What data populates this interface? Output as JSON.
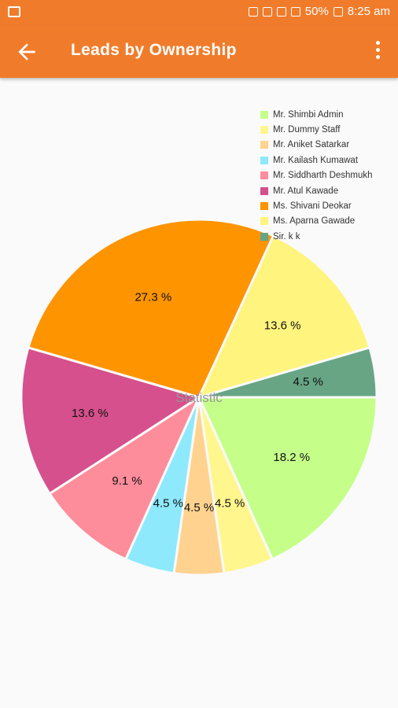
{
  "status_bar": {
    "icons": [
      "image-icon",
      "alarm-icon",
      "mute-icon",
      "volte-icon",
      "wifi-icon",
      "data-icon",
      "signal-icon",
      "battery-icon"
    ],
    "battery": "50%",
    "time": "8:25 am"
  },
  "app_bar": {
    "title": "Leads by Ownership",
    "back_icon": "back-arrow-icon",
    "menu_icon": "more-vert-icon",
    "color": "#f07c2b"
  },
  "chart_data": {
    "type": "pie",
    "center_text": "Statistic",
    "legend": "top-right",
    "slices": [
      {
        "label": "Mr. Shimbi Admin",
        "value": 18.2,
        "display": "18.2 %",
        "color": "#c5ff8a"
      },
      {
        "label": "Mr. Dummy Staff",
        "value": 4.5,
        "display": "4.5 %",
        "color": "#fff68e"
      },
      {
        "label": "Mr. Aniket Satarkar",
        "value": 4.5,
        "display": "4.5 %",
        "color": "#ffd28f"
      },
      {
        "label": "Mr. Kailash Kumawat",
        "value": 4.5,
        "display": "4.5 %",
        "color": "#8ee9fc"
      },
      {
        "label": "Mr. Siddharth Deshmukh",
        "value": 9.1,
        "display": "9.1 %",
        "color": "#fe8d9b"
      },
      {
        "label": "Mr. Atul Kawade",
        "value": 13.6,
        "display": "13.6 %",
        "color": "#d5508c"
      },
      {
        "label": "Ms. Shivani Deokar",
        "value": 27.3,
        "display": "27.3 %",
        "color": "#fe9400"
      },
      {
        "label": "Ms. Aparna Gawade",
        "value": 13.6,
        "display": "13.6 %",
        "color": "#fff47e"
      },
      {
        "label": "Sir. k k",
        "value": 4.5,
        "display": "4.5 %",
        "color": "#67a585"
      }
    ]
  }
}
